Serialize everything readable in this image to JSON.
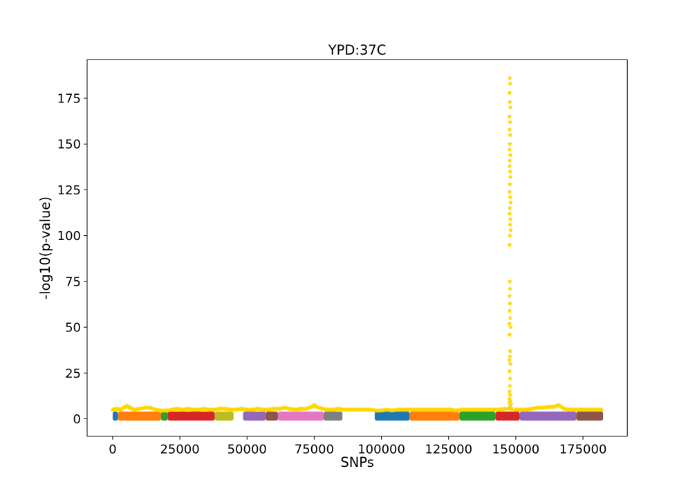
{
  "chart_data": {
    "type": "scatter",
    "title": "YPD:37C",
    "xlabel": "SNPs",
    "ylabel": "-log10(p-value)",
    "xlim": [
      -9500,
      191500
    ],
    "ylim": [
      -9.5,
      196
    ],
    "xticks": [
      0,
      25000,
      50000,
      75000,
      100000,
      125000,
      150000,
      175000
    ],
    "xtick_labels": [
      "0",
      "25000",
      "50000",
      "75000",
      "100000",
      "125000",
      "150000",
      "175000"
    ],
    "yticks": [
      0,
      25,
      50,
      75,
      100,
      125,
      150,
      175
    ],
    "ytick_labels": [
      "0",
      "25",
      "50",
      "75",
      "100",
      "125",
      "150",
      "175"
    ],
    "grid": false,
    "chromosome_bands": [
      {
        "x_start": 0,
        "x_end": 2000,
        "color": "#1f77b4"
      },
      {
        "x_start": 2000,
        "x_end": 18000,
        "color": "#ff7f0e"
      },
      {
        "x_start": 18000,
        "x_end": 20500,
        "color": "#2ca02c"
      },
      {
        "x_start": 20500,
        "x_end": 38000,
        "color": "#d62728"
      },
      {
        "x_start": 38000,
        "x_end": 45000,
        "color": "#bcbd22"
      },
      {
        "x_start": 48500,
        "x_end": 57000,
        "color": "#9467bd"
      },
      {
        "x_start": 57000,
        "x_end": 61500,
        "color": "#8c564b"
      },
      {
        "x_start": 61500,
        "x_end": 78500,
        "color": "#e377c2"
      },
      {
        "x_start": 78500,
        "x_end": 85500,
        "color": "#7f7f7f"
      },
      {
        "x_start": 97500,
        "x_end": 110500,
        "color": "#1f77b4"
      },
      {
        "x_start": 110500,
        "x_end": 129000,
        "color": "#ff7f0e"
      },
      {
        "x_start": 129000,
        "x_end": 142500,
        "color": "#2ca02c"
      },
      {
        "x_start": 142500,
        "x_end": 151500,
        "color": "#d62728"
      },
      {
        "x_start": 151500,
        "x_end": 172500,
        "color": "#9467bd"
      },
      {
        "x_start": 172500,
        "x_end": 182500,
        "color": "#8c564b"
      }
    ],
    "highlight_series": {
      "color": "#ffd700",
      "marker": "star",
      "baseline": [
        [
          0,
          5.0
        ],
        [
          1500,
          5.5
        ],
        [
          3000,
          5.0
        ],
        [
          4500,
          6.5
        ],
        [
          5500,
          7.0
        ],
        [
          6500,
          6.0
        ],
        [
          8000,
          5.0
        ],
        [
          10000,
          5.5
        ],
        [
          12000,
          6.0
        ],
        [
          14000,
          6.0
        ],
        [
          16000,
          5.0
        ],
        [
          18000,
          4.5
        ],
        [
          20000,
          4.5
        ],
        [
          22000,
          5.0
        ],
        [
          24000,
          5.5
        ],
        [
          26000,
          5.0
        ],
        [
          28000,
          5.5
        ],
        [
          30000,
          5.0
        ],
        [
          32000,
          5.0
        ],
        [
          34000,
          5.5
        ],
        [
          36000,
          5.0
        ],
        [
          38000,
          5.0
        ],
        [
          40000,
          5.5
        ],
        [
          42000,
          5.5
        ],
        [
          44000,
          5.0
        ],
        [
          46000,
          5.0
        ],
        [
          48000,
          5.5
        ],
        [
          50000,
          5.0
        ],
        [
          52000,
          5.0
        ],
        [
          54000,
          5.5
        ],
        [
          56000,
          5.0
        ],
        [
          58000,
          5.0
        ],
        [
          60000,
          5.5
        ],
        [
          62000,
          5.5
        ],
        [
          64000,
          6.0
        ],
        [
          66000,
          5.5
        ],
        [
          68000,
          5.0
        ],
        [
          70000,
          5.5
        ],
        [
          72000,
          5.5
        ],
        [
          74000,
          6.5
        ],
        [
          75000,
          7.5
        ],
        [
          76000,
          6.5
        ],
        [
          78000,
          5.5
        ],
        [
          80000,
          5.0
        ],
        [
          82000,
          5.0
        ],
        [
          84000,
          5.5
        ],
        [
          86000,
          5.0
        ],
        [
          88000,
          5.0
        ],
        [
          90000,
          5.0
        ],
        [
          92000,
          5.0
        ],
        [
          94000,
          5.0
        ],
        [
          96000,
          5.0
        ],
        [
          98000,
          4.5
        ],
        [
          100000,
          4.5
        ],
        [
          102000,
          5.0
        ],
        [
          104000,
          4.5
        ],
        [
          106000,
          5.0
        ],
        [
          108000,
          5.0
        ],
        [
          110000,
          5.0
        ],
        [
          112000,
          5.0
        ],
        [
          114000,
          5.0
        ],
        [
          116000,
          5.0
        ],
        [
          118000,
          5.0
        ],
        [
          120000,
          5.0
        ],
        [
          122000,
          5.0
        ],
        [
          124000,
          5.0
        ],
        [
          126000,
          5.0
        ],
        [
          128000,
          4.5
        ],
        [
          130000,
          5.0
        ],
        [
          132000,
          5.0
        ],
        [
          134000,
          5.0
        ],
        [
          136000,
          5.0
        ],
        [
          138000,
          5.0
        ],
        [
          140000,
          5.0
        ],
        [
          142000,
          5.0
        ],
        [
          144000,
          5.0
        ],
        [
          146000,
          5.5
        ],
        [
          150000,
          5.0
        ],
        [
          152000,
          5.0
        ],
        [
          154000,
          5.0
        ],
        [
          156000,
          5.5
        ],
        [
          158000,
          6.0
        ],
        [
          160000,
          6.0
        ],
        [
          162000,
          6.5
        ],
        [
          164000,
          6.5
        ],
        [
          166000,
          7.5
        ],
        [
          168000,
          5.5
        ],
        [
          170000,
          5.0
        ],
        [
          172000,
          5.0
        ],
        [
          174000,
          5.0
        ],
        [
          176000,
          5.0
        ],
        [
          178000,
          5.0
        ],
        [
          180000,
          5.0
        ],
        [
          182000,
          5.0
        ]
      ],
      "peak": [
        [
          147800,
          186
        ],
        [
          147900,
          183
        ],
        [
          147700,
          178
        ],
        [
          147800,
          173
        ],
        [
          148000,
          170
        ],
        [
          147700,
          165
        ],
        [
          147900,
          162
        ],
        [
          147700,
          158
        ],
        [
          147900,
          155
        ],
        [
          147800,
          150
        ],
        [
          147700,
          147
        ],
        [
          148000,
          144
        ],
        [
          147800,
          141
        ],
        [
          147700,
          138
        ],
        [
          147900,
          135
        ],
        [
          148000,
          132
        ],
        [
          147800,
          128
        ],
        [
          147700,
          124
        ],
        [
          147900,
          121
        ],
        [
          148100,
          118
        ],
        [
          147800,
          115
        ],
        [
          147700,
          112
        ],
        [
          148000,
          109
        ],
        [
          147900,
          106
        ],
        [
          148100,
          103
        ],
        [
          147800,
          100
        ],
        [
          147700,
          95
        ],
        [
          147800,
          75
        ],
        [
          147900,
          71
        ],
        [
          147700,
          67
        ],
        [
          147800,
          63
        ],
        [
          147700,
          59
        ],
        [
          147900,
          55
        ],
        [
          147600,
          52
        ],
        [
          148100,
          50
        ],
        [
          147700,
          46
        ],
        [
          147900,
          37
        ],
        [
          147800,
          34
        ],
        [
          147600,
          32
        ],
        [
          148000,
          30
        ],
        [
          147700,
          26
        ],
        [
          147900,
          22
        ],
        [
          147800,
          18
        ],
        [
          147700,
          15
        ],
        [
          147900,
          13
        ],
        [
          147600,
          11
        ],
        [
          148000,
          10
        ],
        [
          147700,
          9
        ],
        [
          148200,
          8
        ],
        [
          147800,
          7
        ],
        [
          147500,
          6
        ],
        [
          148300,
          6
        ]
      ]
    }
  }
}
